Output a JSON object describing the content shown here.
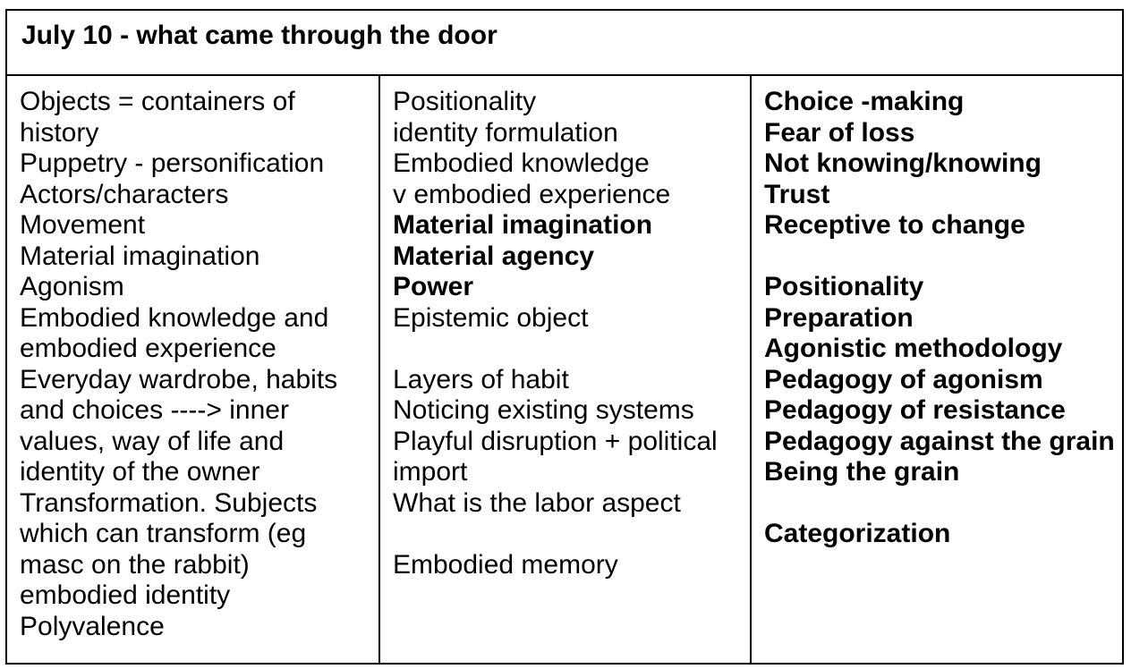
{
  "table": {
    "header": "July 10 - what came through the door",
    "columns": [
      {
        "label": "column-1",
        "items": [
          {
            "text": "Objects = containers of history",
            "bold": false
          },
          {
            "text": "Puppetry - personification",
            "bold": false
          },
          {
            "text": "Actors/characters",
            "bold": false
          },
          {
            "text": "Movement",
            "bold": false
          },
          {
            "text": "Material imagination",
            "bold": false
          },
          {
            "text": "Agonism",
            "bold": false
          },
          {
            "text": "Embodied knowledge and embodied experience",
            "bold": false
          },
          {
            "text": "Everyday wardrobe, habits and choices ----> inner values, way of life and identity of the owner",
            "bold": false
          },
          {
            "text": "Transformation. Subjects which can transform (eg masc on the rabbit)",
            "bold": false
          },
          {
            "text": "embodied identity",
            "bold": false
          },
          {
            "text": "Polyvalence",
            "bold": false
          }
        ]
      },
      {
        "label": "column-2",
        "items": [
          {
            "text": "Positionality",
            "bold": false
          },
          {
            "text": "identity formulation",
            "bold": false
          },
          {
            "text": "Embodied knowledge",
            "bold": false
          },
          {
            "text": "v embodied experience",
            "bold": false
          },
          {
            "text": "Material imagination",
            "bold": true
          },
          {
            "text": "Material agency",
            "bold": true
          },
          {
            "text": "Power",
            "bold": true
          },
          {
            "text": "Epistemic object",
            "bold": false
          },
          {
            "text": "",
            "bold": false
          },
          {
            "text": "Layers of habit",
            "bold": false
          },
          {
            "text": "Noticing existing systems",
            "bold": false
          },
          {
            "text": "Playful disruption + political import",
            "bold": false
          },
          {
            "text": "What is the labor aspect",
            "bold": false
          },
          {
            "text": "",
            "bold": false
          },
          {
            "text": "Embodied memory",
            "bold": false
          }
        ]
      },
      {
        "label": "column-3",
        "items": [
          {
            "text": "Choice -making",
            "bold": true
          },
          {
            "text": "Fear of loss",
            "bold": true
          },
          {
            "text": "Not knowing/knowing",
            "bold": true
          },
          {
            "text": "Trust",
            "bold": true
          },
          {
            "text": "Receptive to change",
            "bold": true
          },
          {
            "text": "",
            "bold": false
          },
          {
            "text": "Positionality",
            "bold": true
          },
          {
            "text": "Preparation",
            "bold": true
          },
          {
            "text": "Agonistic methodology",
            "bold": true
          },
          {
            "text": "Pedagogy of agonism",
            "bold": true
          },
          {
            "text": "Pedagogy of resistance",
            "bold": true
          },
          {
            "text": "Pedagogy against the grain",
            "bold": true
          },
          {
            "text": "Being the grain",
            "bold": true
          },
          {
            "text": "",
            "bold": false
          },
          {
            "text": "Categorization",
            "bold": true
          }
        ]
      }
    ]
  },
  "colors": {
    "border": "#000000",
    "background": "#ffffff",
    "text": "#000000"
  }
}
